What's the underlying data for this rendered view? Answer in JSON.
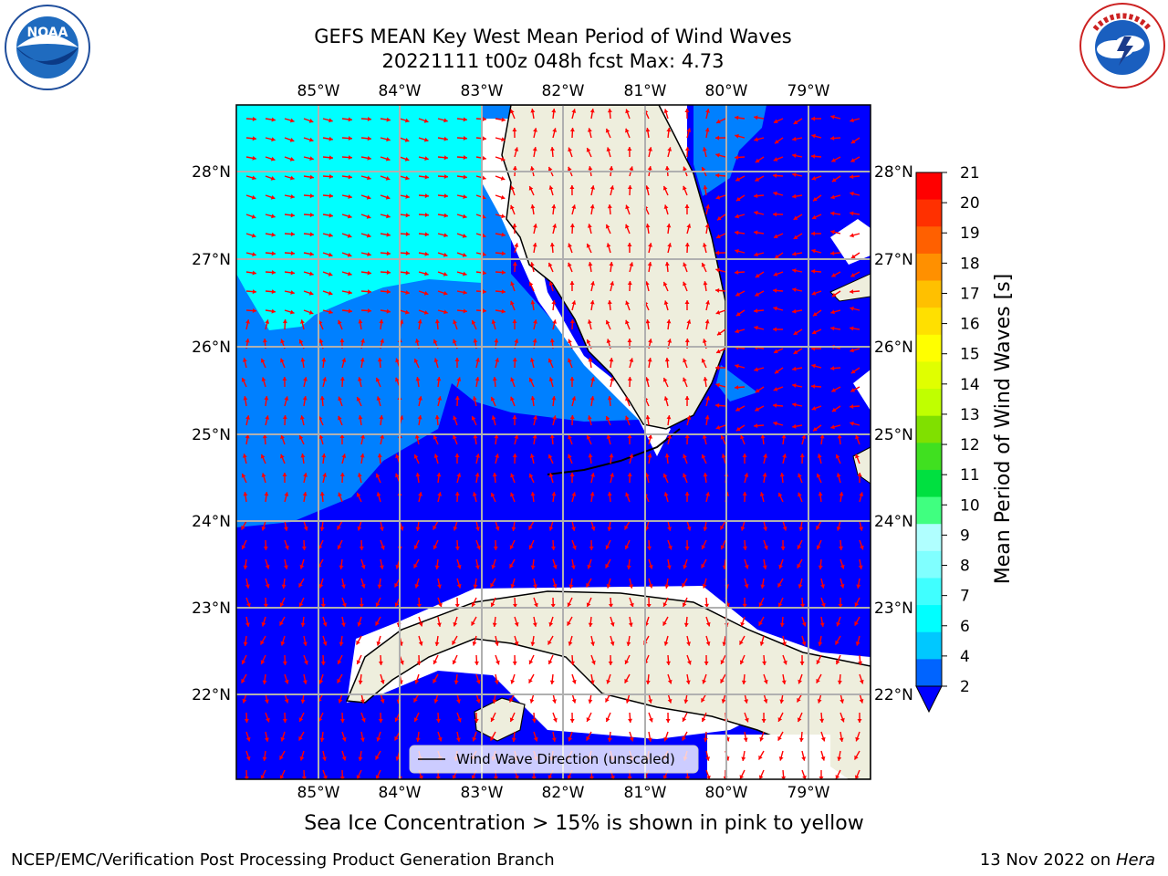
{
  "header": {
    "title_line1": "GEFS MEAN Key West Mean Period of Wind Waves",
    "title_line2": "20221111 t00z 048h fcst   Max: 4.73"
  },
  "map": {
    "lon_labels": [
      "85°W",
      "84°W",
      "83°W",
      "82°W",
      "81°W",
      "80°W",
      "79°W"
    ],
    "lat_labels": [
      "28°N",
      "27°N",
      "26°N",
      "25°N",
      "24°N",
      "23°N",
      "22°N"
    ],
    "legend_label": "Wind Wave Direction (unscaled)",
    "arrow_color": "#ff0000",
    "land_color": "#eeeedd",
    "field_colors": {
      "period_2_4": "#0000ff",
      "period_4_6": "#0080ff",
      "period_6_8": "#00ffff"
    }
  },
  "colorbar": {
    "label": "Mean Period of Wind Waves [s]",
    "ticks": [
      "2",
      "4",
      "6",
      "7",
      "8",
      "9",
      "10",
      "11",
      "12",
      "13",
      "14",
      "15",
      "16",
      "17",
      "18",
      "19",
      "20",
      "21"
    ],
    "colors": [
      "#0064ff",
      "#00c8ff",
      "#00ffff",
      "#40ffff",
      "#80ffff",
      "#b0ffff",
      "#40ff80",
      "#00e040",
      "#40e020",
      "#80e000",
      "#c0ff00",
      "#e0ff00",
      "#ffff00",
      "#ffe000",
      "#ffc000",
      "#ff9000",
      "#ff6000",
      "#ff3000",
      "#ff0000"
    ],
    "extend_color": "#0000ff"
  },
  "footer": {
    "note": "Sea Ice Concentration > 15% is shown in pink to yellow",
    "branch": "NCEP/EMC/Verification Post Processing Product Generation Branch",
    "date": "13 Nov 2022 on ",
    "machine": "Hera"
  },
  "logos": {
    "left": "noaa-logo",
    "right": "nws-logo"
  }
}
